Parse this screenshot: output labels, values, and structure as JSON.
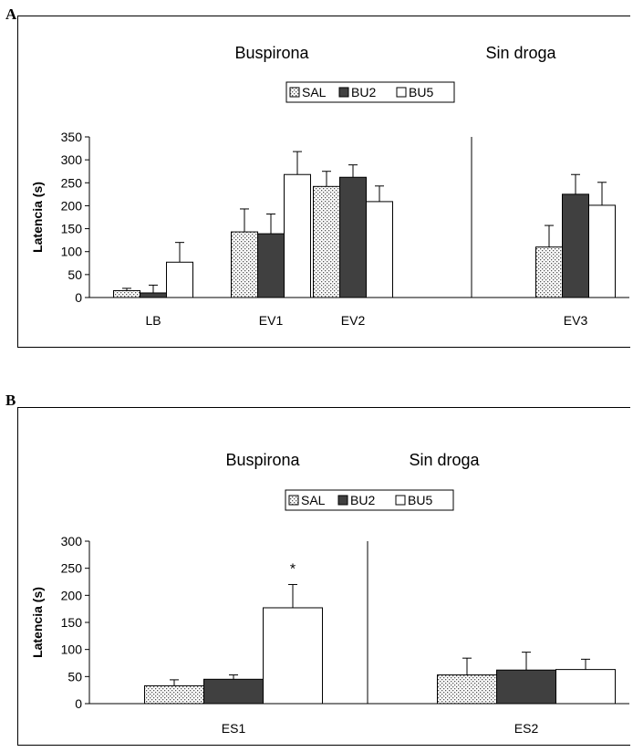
{
  "panels": [
    {
      "letter": "A",
      "section_labels": [
        "Buspirona",
        "Sin droga"
      ],
      "legend": [
        "SAL",
        "BU2",
        "BU5"
      ]
    },
    {
      "letter": "B",
      "section_labels": [
        "Buspirona",
        "Sin droga"
      ],
      "legend": [
        "SAL",
        "BU2",
        "BU5"
      ]
    }
  ],
  "colors": {
    "SAL": "#dddddd",
    "BU2": "#404040",
    "BU5": "#ffffff"
  },
  "chart_data": [
    {
      "type": "bar",
      "title": "",
      "ylabel": "Latencia (s)",
      "ylim": [
        0,
        350
      ],
      "yticks": [
        0,
        50,
        100,
        150,
        200,
        250,
        300,
        350
      ],
      "categories": [
        "LB",
        "EV1",
        "EV2",
        "EV3"
      ],
      "separator_after": "EV2",
      "grid": false,
      "legend_position": "top",
      "series": [
        {
          "name": "SAL",
          "pattern": "dotted",
          "values": [
            15,
            143,
            242,
            110
          ],
          "errors": [
            5,
            50,
            33,
            47
          ]
        },
        {
          "name": "BU2",
          "pattern": "dark",
          "values": [
            10,
            139,
            262,
            225
          ],
          "errors": [
            17,
            43,
            27,
            43
          ]
        },
        {
          "name": "BU5",
          "pattern": "white",
          "values": [
            77,
            268,
            209,
            201
          ],
          "errors": [
            43,
            50,
            34,
            50
          ]
        }
      ]
    },
    {
      "type": "bar",
      "title": "",
      "ylabel": "Latencia (s)",
      "ylim": [
        0,
        300
      ],
      "yticks": [
        0,
        50,
        100,
        150,
        200,
        250,
        300
      ],
      "categories": [
        "ES1",
        "ES2"
      ],
      "separator_after": "ES1",
      "grid": false,
      "legend_position": "top",
      "annotations": [
        {
          "category": "ES1",
          "series": "BU5",
          "text": "*"
        }
      ],
      "series": [
        {
          "name": "SAL",
          "pattern": "dotted",
          "values": [
            33,
            53
          ],
          "errors": [
            11,
            31
          ]
        },
        {
          "name": "BU2",
          "pattern": "dark",
          "values": [
            45,
            62
          ],
          "errors": [
            8,
            33
          ]
        },
        {
          "name": "BU5",
          "pattern": "white",
          "values": [
            177,
            63
          ],
          "errors": [
            43,
            19
          ]
        }
      ]
    }
  ]
}
